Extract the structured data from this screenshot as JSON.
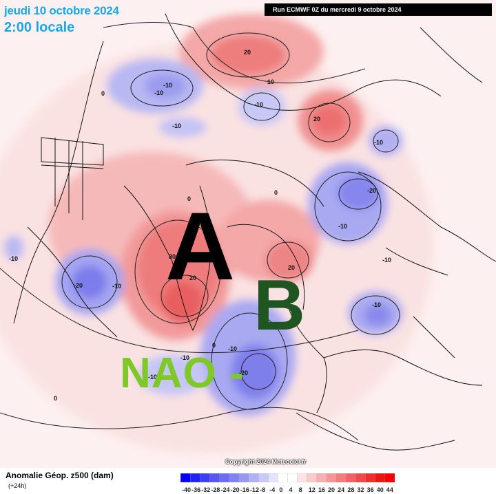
{
  "header": {
    "date_line": "jeudi 10 octobre 2024",
    "time_line": "2:00 locale",
    "run_info": "Run ECMWF 0Z du mercredi 9 octobre 2024"
  },
  "annotations": {
    "high_letter": "A",
    "low_letter": "B",
    "nao": "NAO -"
  },
  "contour_labels": [
    {
      "value": "20",
      "region": "arctic-siberia"
    },
    {
      "value": "-10",
      "region": "alaska"
    },
    {
      "value": "-10",
      "region": "alaska-west"
    },
    {
      "value": "-10",
      "region": "bering"
    },
    {
      "value": "10",
      "region": "arctic"
    },
    {
      "value": "-10",
      "region": "east-siberian-sea"
    },
    {
      "value": "20",
      "region": "siberia"
    },
    {
      "value": "-10",
      "region": "mongolia"
    },
    {
      "value": "-20",
      "region": "central-asia"
    },
    {
      "value": "-10",
      "region": "central-asia-south"
    },
    {
      "value": "0",
      "region": "pacific"
    },
    {
      "value": "0",
      "region": "arctic-center"
    },
    {
      "value": "0",
      "region": "greenland-north"
    },
    {
      "value": "30",
      "region": "greenland"
    },
    {
      "value": "20",
      "region": "greenland-east"
    },
    {
      "value": "20",
      "region": "scandinavia"
    },
    {
      "value": "-10",
      "region": "russia"
    },
    {
      "value": "-10",
      "region": "black-sea"
    },
    {
      "value": "-10",
      "region": "pacific-east"
    },
    {
      "value": "-20",
      "region": "hudson-bay"
    },
    {
      "value": "-10",
      "region": "canada-east"
    },
    {
      "value": "0",
      "region": "atlantic"
    },
    {
      "value": "-10",
      "region": "atlantic-west"
    },
    {
      "value": "-10",
      "region": "atlantic-mid"
    },
    {
      "value": "-10",
      "region": "atlantic-east"
    },
    {
      "value": "-20",
      "region": "iberia-west"
    },
    {
      "value": "0",
      "region": "atlantic-south"
    }
  ],
  "footer": {
    "copyright": "Copyright 2024 Meteociel.fr",
    "legend_title": "Anomalie Géop. z500 (dam)",
    "legend_subtitle": "(+24h)"
  },
  "legend": {
    "ticks": [
      "-40",
      "-36",
      "-32",
      "-28",
      "-24",
      "-20",
      "-16",
      "-12",
      "-8",
      "-4",
      "0",
      "4",
      "8",
      "12",
      "16",
      "20",
      "24",
      "28",
      "32",
      "36",
      "40",
      "44"
    ],
    "colors": [
      "#0000ff",
      "#2323f5",
      "#3e3ef2",
      "#5656f0",
      "#6c6cf0",
      "#8282f2",
      "#9999f4",
      "#b2b2f7",
      "#cacafa",
      "#e4e4fc",
      "#ffffff",
      "#ffffff",
      "#fde4e4",
      "#fbcaca",
      "#f9b0b0",
      "#f79696",
      "#f57c7c",
      "#f36262",
      "#f14848",
      "#ef2e2e",
      "#ed1414",
      "#ff0000"
    ]
  }
}
